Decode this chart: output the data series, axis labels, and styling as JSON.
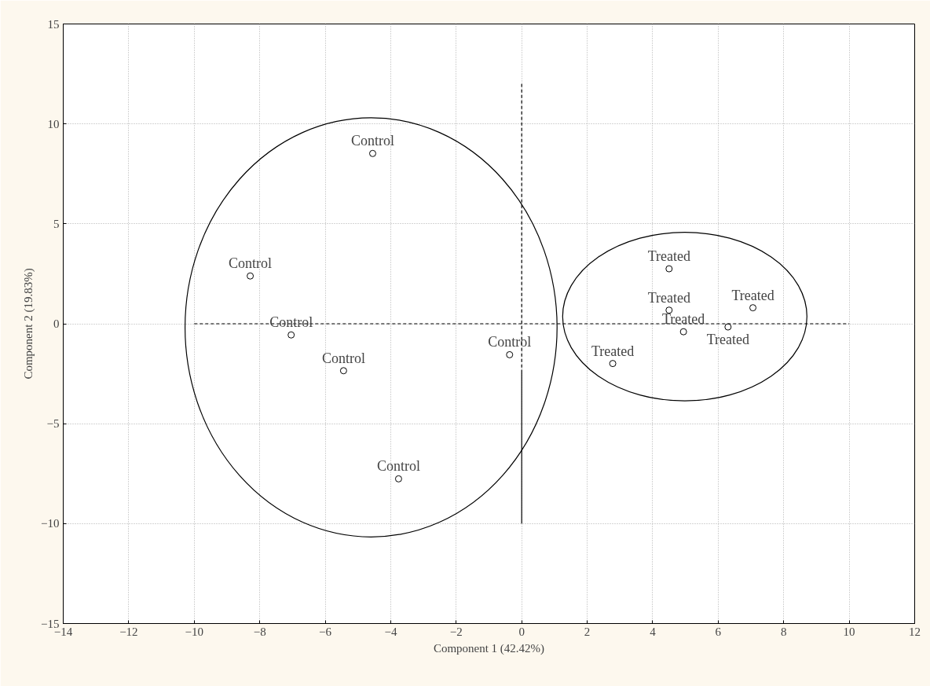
{
  "chart_data": {
    "type": "scatter",
    "xlabel": "Component 1 (42.42%)",
    "ylabel": "Component 2 (19.83%)",
    "xlim": [
      -14,
      12
    ],
    "ylim": [
      -15,
      15
    ],
    "xticks": [
      -14,
      -12,
      -10,
      -8,
      -6,
      -4,
      -2,
      0,
      2,
      4,
      6,
      8,
      10,
      12
    ],
    "yticks": [
      -15,
      -10,
      -5,
      0,
      5,
      10,
      15
    ],
    "grid": true,
    "marker": "circle",
    "series": [
      {
        "color": "#000000",
        "x": [
          -4.55,
          -8.29,
          -7.04,
          -5.44,
          -3.76,
          -0.37,
          4.5,
          4.5,
          7.06,
          4.94,
          6.3,
          2.78
        ],
        "values": [
          8.52,
          2.39,
          -0.56,
          -2.35,
          -7.76,
          -1.55,
          2.75,
          0.68,
          0.8,
          -0.4,
          -0.16,
          -1.99
        ]
      },
      {
        "type": "line",
        "line_style": "dashed",
        "marker": "none",
        "color": "#000000",
        "x": [
          -10,
          10
        ],
        "values": [
          0,
          0
        ]
      },
      {
        "type": "line",
        "line_style": "dashed",
        "marker": "none",
        "color": "#000000",
        "x": [
          0,
          0
        ],
        "values": [
          12,
          -2.3
        ]
      },
      {
        "type": "line",
        "line_style": "solid",
        "marker": "none",
        "color": "#000000",
        "x": [
          0,
          0
        ],
        "values": [
          -2.3,
          -10
        ]
      }
    ],
    "annotations": [
      {
        "text": "Control",
        "x": -4.55,
        "y": 8.52
      },
      {
        "text": "Control",
        "x": -8.29,
        "y": 2.39
      },
      {
        "text": "Control",
        "x": -7.04,
        "y": -0.56
      },
      {
        "text": "Control",
        "x": -5.44,
        "y": -2.35
      },
      {
        "text": "Control",
        "x": -3.76,
        "y": -7.76
      },
      {
        "text": "Control",
        "x": -0.37,
        "y": -1.55
      },
      {
        "text": "Treated",
        "x": 4.5,
        "y": 2.75
      },
      {
        "text": "Treated",
        "x": 4.5,
        "y": 0.68
      },
      {
        "text": "Treated",
        "x": 7.06,
        "y": 0.8
      },
      {
        "text": "Treated",
        "x": 4.94,
        "y": -0.4
      },
      {
        "text": "Treated",
        "x": 6.3,
        "y": -0.16
      },
      {
        "text": "Treated",
        "x": 2.78,
        "y": -1.99
      }
    ]
  }
}
